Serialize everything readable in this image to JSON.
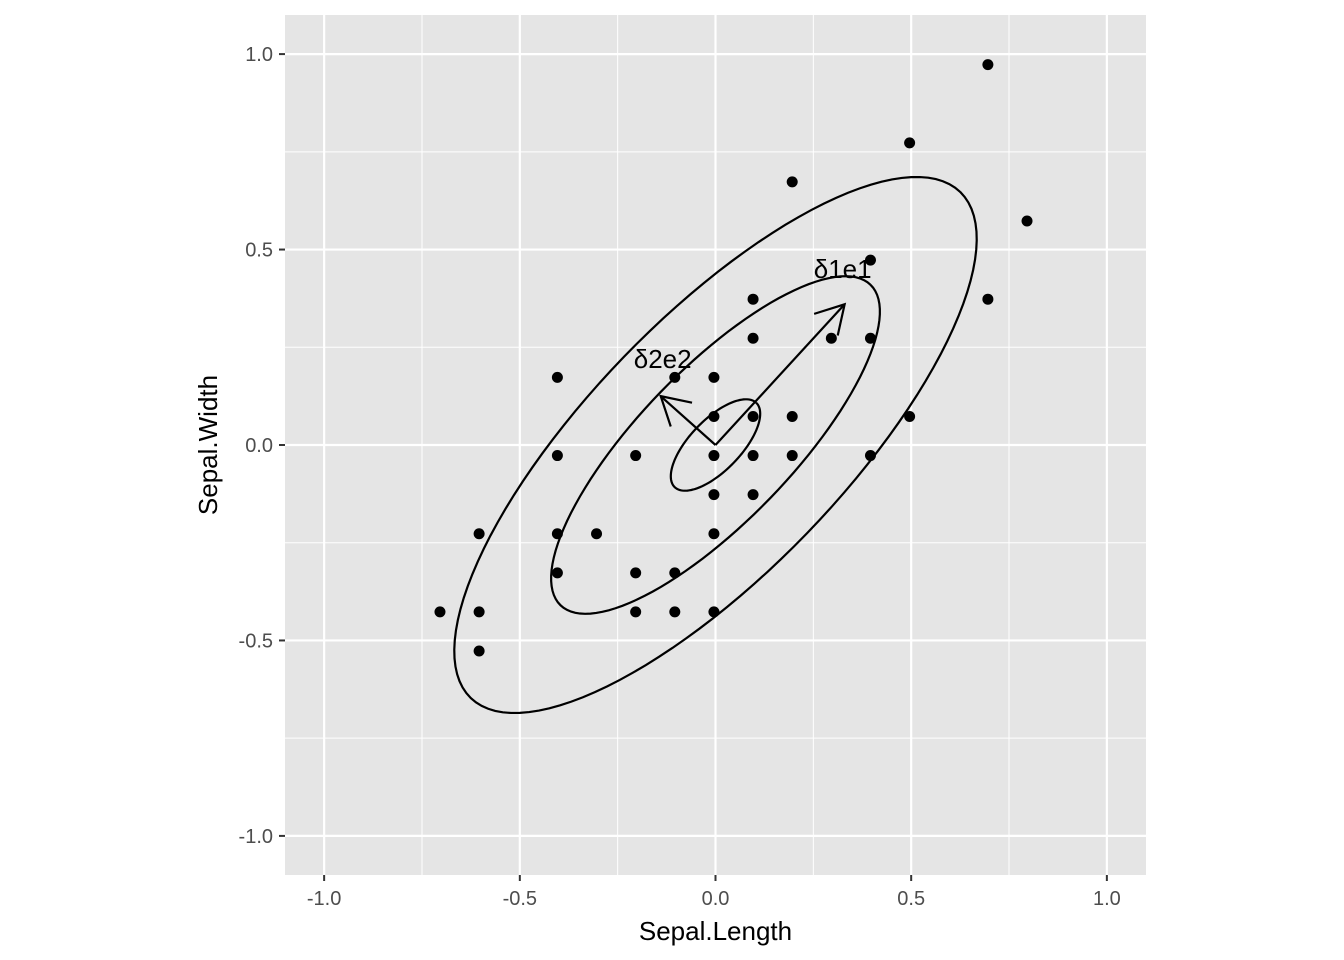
{
  "chart_data": {
    "type": "scatter",
    "title": "",
    "xlabel": "Sepal.Length",
    "ylabel": "Sepal.Width",
    "xlim": [
      -1.1,
      1.1
    ],
    "ylim": [
      -1.1,
      1.1
    ],
    "x_ticks": [
      -1.0,
      -0.5,
      0.0,
      0.5,
      1.0
    ],
    "x_tick_labels": [
      "-1.0",
      "-0.5",
      "0.0",
      "0.5",
      "1.0"
    ],
    "y_ticks": [
      -1.0,
      -0.5,
      0.0,
      0.5,
      1.0
    ],
    "y_tick_labels": [
      "-1.0",
      "-0.5",
      "0.0",
      "0.5",
      "1.0"
    ],
    "grid": true,
    "panel_background": "#e5e5e5",
    "grid_color": "#ffffff",
    "point_color": "#000000",
    "points": [
      [
        0.696,
        0.973
      ],
      [
        0.496,
        0.773
      ],
      [
        0.196,
        0.673
      ],
      [
        0.796,
        0.573
      ],
      [
        0.396,
        0.473
      ],
      [
        0.096,
        0.373
      ],
      [
        0.696,
        0.373
      ],
      [
        0.096,
        0.273
      ],
      [
        0.296,
        0.273
      ],
      [
        0.396,
        0.273
      ],
      [
        -0.404,
        0.173
      ],
      [
        -0.104,
        0.173
      ],
      [
        -0.004,
        0.173
      ],
      [
        -0.004,
        0.073
      ],
      [
        0.096,
        0.073
      ],
      [
        0.196,
        0.073
      ],
      [
        0.496,
        0.073
      ],
      [
        -0.404,
        -0.027
      ],
      [
        -0.204,
        -0.027
      ],
      [
        -0.004,
        -0.027
      ],
      [
        0.096,
        -0.027
      ],
      [
        0.196,
        -0.027
      ],
      [
        0.396,
        -0.027
      ],
      [
        -0.004,
        -0.127
      ],
      [
        0.096,
        -0.127
      ],
      [
        -0.604,
        -0.227
      ],
      [
        -0.404,
        -0.227
      ],
      [
        -0.304,
        -0.227
      ],
      [
        -0.004,
        -0.227
      ],
      [
        -0.404,
        -0.327
      ],
      [
        -0.204,
        -0.327
      ],
      [
        -0.104,
        -0.327
      ],
      [
        -0.704,
        -0.427
      ],
      [
        -0.604,
        -0.427
      ],
      [
        -0.204,
        -0.427
      ],
      [
        -0.104,
        -0.427
      ],
      [
        -0.004,
        -0.427
      ],
      [
        -0.604,
        -0.527
      ]
    ],
    "ellipses": [
      {
        "center": [
          0.0,
          0.0
        ],
        "semi_major": 0.15,
        "semi_minor": 0.065,
        "angle_deg": 46
      },
      {
        "center": [
          0.0,
          0.0
        ],
        "semi_major": 0.57,
        "semi_minor": 0.195,
        "angle_deg": 46
      },
      {
        "center": [
          0.0,
          0.0
        ],
        "semi_major": 0.9,
        "semi_minor": 0.325,
        "angle_deg": 46
      }
    ],
    "arrows": [
      {
        "label": "δ1e1",
        "from": [
          0.0,
          0.0
        ],
        "to": [
          0.33,
          0.36
        ],
        "label_at": [
          0.325,
          0.45
        ]
      },
      {
        "label": "δ2e2",
        "from": [
          0.0,
          0.0
        ],
        "to": [
          -0.14,
          0.125
        ],
        "label_at": [
          -0.135,
          0.22
        ]
      }
    ]
  }
}
